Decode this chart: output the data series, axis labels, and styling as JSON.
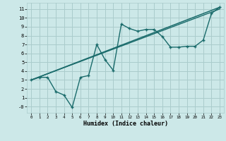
{
  "title": "",
  "xlabel": "Humidex (Indice chaleur)",
  "bg_color": "#cce8e8",
  "grid_color": "#aacccc",
  "line_color": "#1a6b6b",
  "xlim": [
    -0.5,
    23.5
  ],
  "ylim": [
    -0.7,
    11.7
  ],
  "xticks": [
    0,
    1,
    2,
    3,
    4,
    5,
    6,
    7,
    8,
    9,
    10,
    11,
    12,
    13,
    14,
    15,
    16,
    17,
    18,
    19,
    20,
    21,
    22,
    23
  ],
  "yticks": [
    0,
    1,
    2,
    3,
    4,
    5,
    6,
    7,
    8,
    9,
    10,
    11
  ],
  "ytick_labels": [
    "-0",
    "1",
    "2",
    "3",
    "4",
    "5",
    "6",
    "7",
    "8",
    "9",
    "10",
    "11"
  ],
  "series1_x": [
    0,
    1,
    2,
    3,
    4,
    5,
    6,
    7,
    8,
    9,
    10,
    11,
    12,
    13,
    14,
    15,
    16,
    17,
    18,
    19,
    20,
    21,
    22,
    23
  ],
  "series1_y": [
    3.0,
    3.3,
    3.3,
    1.7,
    1.3,
    -0.1,
    3.3,
    3.5,
    7.0,
    5.3,
    4.1,
    9.3,
    8.8,
    8.5,
    8.7,
    8.7,
    7.9,
    6.7,
    6.7,
    6.8,
    6.8,
    7.5,
    10.5,
    11.2
  ],
  "series2_x": [
    0,
    23
  ],
  "series2_y": [
    3.0,
    11.2
  ],
  "series3_x": [
    0,
    23
  ],
  "series3_y": [
    3.0,
    11.0
  ]
}
